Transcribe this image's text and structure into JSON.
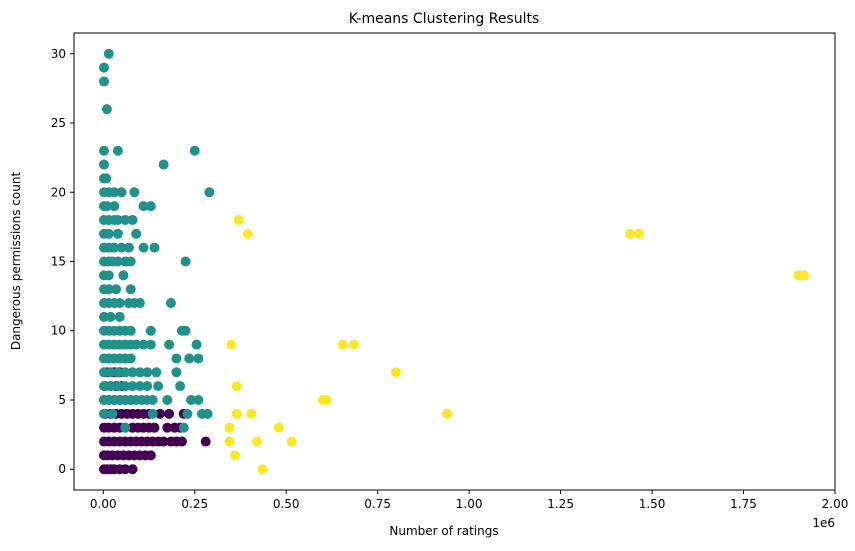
{
  "chart_data": {
    "type": "scatter",
    "title": "K-means Clustering Results",
    "xlabel": "Number of ratings",
    "ylabel": "Dangerous permissions count",
    "x_offset_label": "1e6",
    "xlim": [
      -80000,
      2000000
    ],
    "ylim": [
      -1.5,
      31.5
    ],
    "x_ticks": [
      {
        "value": 0,
        "label": "0.00"
      },
      {
        "value": 250000,
        "label": "0.25"
      },
      {
        "value": 500000,
        "label": "0.50"
      },
      {
        "value": 750000,
        "label": "0.75"
      },
      {
        "value": 1000000,
        "label": "1.00"
      },
      {
        "value": 1250000,
        "label": "1.25"
      },
      {
        "value": 1500000,
        "label": "1.50"
      },
      {
        "value": 1750000,
        "label": "1.75"
      },
      {
        "value": 2000000,
        "label": "2.00"
      }
    ],
    "y_ticks": [
      {
        "value": 0,
        "label": "0"
      },
      {
        "value": 5,
        "label": "5"
      },
      {
        "value": 10,
        "label": "10"
      },
      {
        "value": 15,
        "label": "15"
      },
      {
        "value": 20,
        "label": "20"
      },
      {
        "value": 25,
        "label": "25"
      },
      {
        "value": 30,
        "label": "30"
      }
    ],
    "grid": false,
    "legend": "none",
    "series": [
      {
        "color": "#440154",
        "points": [
          [
            2000,
            0
          ],
          [
            10000,
            0
          ],
          [
            20000,
            0
          ],
          [
            30000,
            0
          ],
          [
            45000,
            0
          ],
          [
            60000,
            0
          ],
          [
            80000,
            0
          ],
          [
            2000,
            1
          ],
          [
            12000,
            1
          ],
          [
            25000,
            1
          ],
          [
            40000,
            1
          ],
          [
            55000,
            1
          ],
          [
            70000,
            1
          ],
          [
            85000,
            1
          ],
          [
            100000,
            1
          ],
          [
            115000,
            1
          ],
          [
            130000,
            1
          ],
          [
            2000,
            2
          ],
          [
            15000,
            2
          ],
          [
            30000,
            2
          ],
          [
            45000,
            2
          ],
          [
            60000,
            2
          ],
          [
            75000,
            2
          ],
          [
            90000,
            2
          ],
          [
            105000,
            2
          ],
          [
            120000,
            2
          ],
          [
            135000,
            2
          ],
          [
            150000,
            2
          ],
          [
            165000,
            2
          ],
          [
            185000,
            2
          ],
          [
            200000,
            2
          ],
          [
            215000,
            2
          ],
          [
            280000,
            2
          ],
          [
            2000,
            3
          ],
          [
            15000,
            3
          ],
          [
            30000,
            3
          ],
          [
            45000,
            3
          ],
          [
            60000,
            3
          ],
          [
            80000,
            3
          ],
          [
            95000,
            3
          ],
          [
            110000,
            3
          ],
          [
            125000,
            3
          ],
          [
            140000,
            3
          ],
          [
            175000,
            3
          ],
          [
            195000,
            3
          ],
          [
            210000,
            3
          ],
          [
            5000,
            4
          ],
          [
            20000,
            4
          ],
          [
            35000,
            4
          ],
          [
            50000,
            4
          ],
          [
            65000,
            4
          ],
          [
            80000,
            4
          ],
          [
            95000,
            4
          ],
          [
            110000,
            4
          ],
          [
            125000,
            4
          ],
          [
            155000,
            4
          ],
          [
            180000,
            4
          ],
          [
            220000,
            4
          ],
          [
            2000,
            5
          ],
          [
            15000,
            5
          ],
          [
            30000,
            5
          ],
          [
            45000,
            5
          ],
          [
            60000,
            5
          ],
          [
            75000,
            5
          ],
          [
            5000,
            6
          ],
          [
            20000,
            6
          ],
          [
            35000,
            6
          ],
          [
            50000,
            6
          ],
          [
            10000,
            7
          ],
          [
            30000,
            7
          ],
          [
            45000,
            7
          ]
        ]
      },
      {
        "color": "#21918c",
        "points": [
          [
            15000,
            30
          ],
          [
            2000,
            29
          ],
          [
            2000,
            28
          ],
          [
            10000,
            26
          ],
          [
            2000,
            23
          ],
          [
            40000,
            23
          ],
          [
            250000,
            23
          ],
          [
            2000,
            22
          ],
          [
            165000,
            22
          ],
          [
            2000,
            21
          ],
          [
            8000,
            21
          ],
          [
            2000,
            20
          ],
          [
            15000,
            20
          ],
          [
            30000,
            20
          ],
          [
            50000,
            20
          ],
          [
            85000,
            20
          ],
          [
            290000,
            20
          ],
          [
            2000,
            19
          ],
          [
            10000,
            19
          ],
          [
            30000,
            19
          ],
          [
            110000,
            19
          ],
          [
            130000,
            19
          ],
          [
            2000,
            18
          ],
          [
            15000,
            18
          ],
          [
            30000,
            18
          ],
          [
            40000,
            18
          ],
          [
            60000,
            18
          ],
          [
            80000,
            18
          ],
          [
            2000,
            17
          ],
          [
            15000,
            17
          ],
          [
            40000,
            17
          ],
          [
            90000,
            17
          ],
          [
            2000,
            16
          ],
          [
            15000,
            16
          ],
          [
            30000,
            16
          ],
          [
            50000,
            16
          ],
          [
            70000,
            16
          ],
          [
            110000,
            16
          ],
          [
            140000,
            16
          ],
          [
            2000,
            15
          ],
          [
            15000,
            15
          ],
          [
            25000,
            15
          ],
          [
            40000,
            15
          ],
          [
            60000,
            15
          ],
          [
            75000,
            15
          ],
          [
            225000,
            15
          ],
          [
            2000,
            14
          ],
          [
            15000,
            14
          ],
          [
            55000,
            14
          ],
          [
            2000,
            13
          ],
          [
            15000,
            13
          ],
          [
            35000,
            13
          ],
          [
            75000,
            13
          ],
          [
            2000,
            12
          ],
          [
            15000,
            12
          ],
          [
            30000,
            12
          ],
          [
            45000,
            12
          ],
          [
            70000,
            12
          ],
          [
            85000,
            12
          ],
          [
            100000,
            12
          ],
          [
            185000,
            12
          ],
          [
            2000,
            11
          ],
          [
            20000,
            11
          ],
          [
            45000,
            11
          ],
          [
            2000,
            10
          ],
          [
            15000,
            10
          ],
          [
            30000,
            10
          ],
          [
            45000,
            10
          ],
          [
            60000,
            10
          ],
          [
            75000,
            10
          ],
          [
            130000,
            10
          ],
          [
            215000,
            10
          ],
          [
            225000,
            10
          ],
          [
            2000,
            9
          ],
          [
            15000,
            9
          ],
          [
            30000,
            9
          ],
          [
            45000,
            9
          ],
          [
            60000,
            9
          ],
          [
            75000,
            9
          ],
          [
            90000,
            9
          ],
          [
            110000,
            9
          ],
          [
            130000,
            9
          ],
          [
            180000,
            9
          ],
          [
            255000,
            9
          ],
          [
            2000,
            8
          ],
          [
            15000,
            8
          ],
          [
            30000,
            8
          ],
          [
            45000,
            8
          ],
          [
            60000,
            8
          ],
          [
            75000,
            8
          ],
          [
            200000,
            8
          ],
          [
            235000,
            8
          ],
          [
            260000,
            8
          ],
          [
            2000,
            7
          ],
          [
            20000,
            7
          ],
          [
            40000,
            7
          ],
          [
            60000,
            7
          ],
          [
            80000,
            7
          ],
          [
            100000,
            7
          ],
          [
            120000,
            7
          ],
          [
            145000,
            7
          ],
          [
            200000,
            7
          ],
          [
            2000,
            6
          ],
          [
            20000,
            6
          ],
          [
            40000,
            6
          ],
          [
            60000,
            6
          ],
          [
            80000,
            6
          ],
          [
            100000,
            6
          ],
          [
            120000,
            6
          ],
          [
            150000,
            6
          ],
          [
            210000,
            6
          ],
          [
            2000,
            5
          ],
          [
            15000,
            5
          ],
          [
            30000,
            5
          ],
          [
            45000,
            5
          ],
          [
            60000,
            5
          ],
          [
            75000,
            5
          ],
          [
            90000,
            5
          ],
          [
            105000,
            5
          ],
          [
            120000,
            5
          ],
          [
            135000,
            5
          ],
          [
            175000,
            5
          ],
          [
            240000,
            5
          ],
          [
            260000,
            5
          ],
          [
            2000,
            4
          ],
          [
            25000,
            4
          ],
          [
            135000,
            4
          ],
          [
            230000,
            4
          ],
          [
            270000,
            4
          ],
          [
            285000,
            4
          ],
          [
            60000,
            3
          ],
          [
            220000,
            3
          ]
        ]
      },
      {
        "color": "#fde725",
        "points": [
          [
            370000,
            18
          ],
          [
            395000,
            17
          ],
          [
            1440000,
            17
          ],
          [
            1465000,
            17
          ],
          [
            1900000,
            14
          ],
          [
            1915000,
            14
          ],
          [
            350000,
            9
          ],
          [
            655000,
            9
          ],
          [
            685000,
            9
          ],
          [
            800000,
            7
          ],
          [
            365000,
            6
          ],
          [
            600000,
            5
          ],
          [
            610000,
            5
          ],
          [
            365000,
            4
          ],
          [
            405000,
            4
          ],
          [
            940000,
            4
          ],
          [
            345000,
            3
          ],
          [
            480000,
            3
          ],
          [
            345000,
            2
          ],
          [
            420000,
            2
          ],
          [
            515000,
            2
          ],
          [
            360000,
            1
          ],
          [
            435000,
            0
          ]
        ]
      }
    ]
  }
}
